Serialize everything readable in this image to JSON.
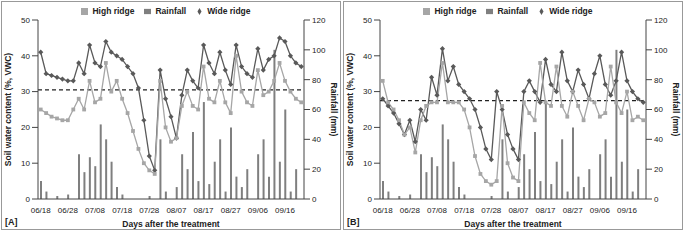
{
  "chart_data": [
    {
      "type": "line",
      "title": "[A]",
      "x_label": "Days after the treatment",
      "y_label": "Soil water content (%, VWC)",
      "y2_label": "Rainfall (mm)",
      "categories": [
        "06/18",
        null,
        null,
        null,
        null,
        "06/28",
        null,
        null,
        null,
        null,
        "07/08",
        null,
        null,
        null,
        null,
        "07/18",
        null,
        null,
        null,
        null,
        "07/28",
        null,
        null,
        null,
        null,
        "08/07",
        null,
        null,
        null,
        null,
        "08/17",
        null,
        null,
        null,
        null,
        "08/27",
        null,
        null,
        null,
        null,
        "09/06",
        null,
        null,
        null,
        null,
        "09/16",
        null,
        null,
        null
      ],
      "series": [
        {
          "name": "Rainfall",
          "type": "bar",
          "axis": "y2",
          "color": "#7f7f7f",
          "values": [
            12,
            5,
            0,
            2,
            0,
            3,
            0,
            30,
            18,
            28,
            22,
            50,
            40,
            25,
            8,
            3,
            0,
            0,
            0,
            0,
            2,
            0,
            40,
            5,
            0,
            8,
            30,
            20,
            45,
            12,
            65,
            10,
            25,
            40,
            5,
            48,
            15,
            8,
            20,
            0,
            30,
            40,
            15,
            100,
            25,
            60,
            5,
            20,
            0
          ]
        },
        {
          "name": "Wide ridge",
          "type": "line",
          "color": "#595959",
          "marker": "diamond",
          "values": [
            41,
            35,
            34.5,
            34,
            33.5,
            33,
            33,
            38,
            35,
            43,
            38,
            37,
            44,
            41,
            40,
            39,
            37,
            35,
            31,
            22,
            12,
            8,
            36,
            28,
            23,
            17,
            29,
            36,
            33,
            31,
            43,
            38,
            35,
            41,
            36,
            32,
            43,
            37,
            35,
            34,
            42,
            36,
            39,
            40,
            45,
            44,
            40,
            38,
            37
          ]
        },
        {
          "name": "High ridge",
          "type": "line",
          "color": "#a6a6a6",
          "marker": "square",
          "values": [
            25,
            24,
            23,
            22.5,
            22,
            22,
            25,
            28,
            25,
            33,
            27,
            28,
            38,
            30,
            33,
            28,
            24,
            19,
            14,
            10,
            8,
            7,
            33,
            20,
            16,
            17,
            26,
            30,
            26,
            25,
            37,
            28,
            27,
            33,
            27,
            24,
            40,
            30,
            27,
            26,
            36,
            29,
            30,
            33,
            38,
            33,
            30,
            28,
            27
          ]
        }
      ],
      "threshold": 30.5,
      "ylim": [
        0,
        50
      ],
      "yticks": [
        0,
        10,
        20,
        30,
        40,
        50
      ],
      "y2lim": [
        0,
        120
      ],
      "y2ticks": [
        0,
        20,
        40,
        60,
        80,
        100,
        120
      ],
      "legend": "top",
      "grid": false
    },
    {
      "type": "line",
      "title": "[B]",
      "x_label": "Days after the treatment",
      "y_label": "Soil water content (%, VWC)",
      "y2_label": "Rainfall (mm)",
      "categories": [
        "06/18",
        null,
        null,
        null,
        null,
        "06/28",
        null,
        null,
        null,
        null,
        "07/08",
        null,
        null,
        null,
        null,
        "07/18",
        null,
        null,
        null,
        null,
        "07/28",
        null,
        null,
        null,
        null,
        "08/07",
        null,
        null,
        null,
        null,
        "08/17",
        null,
        null,
        null,
        null,
        "08/27",
        null,
        null,
        null,
        null,
        "09/06",
        null,
        null,
        null,
        null,
        "09/16",
        null,
        null,
        null
      ],
      "series": [
        {
          "name": "Rainfall",
          "type": "bar",
          "axis": "y2",
          "color": "#7f7f7f",
          "values": [
            12,
            5,
            0,
            2,
            0,
            3,
            0,
            30,
            18,
            28,
            22,
            50,
            40,
            25,
            8,
            3,
            0,
            0,
            0,
            0,
            2,
            0,
            40,
            5,
            0,
            8,
            30,
            20,
            45,
            12,
            65,
            10,
            25,
            40,
            5,
            48,
            15,
            8,
            20,
            0,
            30,
            40,
            15,
            100,
            25,
            60,
            5,
            20,
            0
          ]
        },
        {
          "name": "Wide ridge",
          "type": "line",
          "color": "#595959",
          "marker": "diamond",
          "values": [
            28,
            26,
            24,
            21,
            18,
            22,
            16,
            25,
            22,
            34,
            29,
            42,
            33,
            37,
            32,
            30,
            28,
            25,
            20,
            14,
            11,
            30,
            25,
            18,
            14,
            11,
            30,
            33,
            30,
            27,
            39,
            32,
            30,
            41,
            33,
            30,
            36,
            32,
            28,
            35,
            40,
            32,
            29,
            33,
            41,
            33,
            30,
            28,
            27
          ]
        },
        {
          "name": "High ridge",
          "type": "line",
          "color": "#a6a6a6",
          "marker": "square",
          "values": [
            33,
            27,
            25,
            22,
            18,
            20,
            13,
            22,
            26,
            27,
            27,
            38,
            27,
            27,
            27,
            25,
            20,
            12,
            7,
            5,
            4,
            5,
            26,
            10,
            6,
            5,
            27,
            24,
            22,
            38,
            27,
            26,
            37,
            26,
            23,
            30,
            26,
            22,
            28,
            27,
            23,
            24,
            37,
            27,
            24,
            30,
            22,
            23,
            22
          ]
        }
      ],
      "threshold": 27.5,
      "ylim": [
        0,
        50
      ],
      "yticks": [
        0,
        10,
        20,
        30,
        40,
        50
      ],
      "y2lim": [
        0,
        120
      ],
      "y2ticks": [
        0,
        20,
        40,
        60,
        80,
        100,
        120
      ],
      "legend": "top",
      "grid": false
    }
  ]
}
